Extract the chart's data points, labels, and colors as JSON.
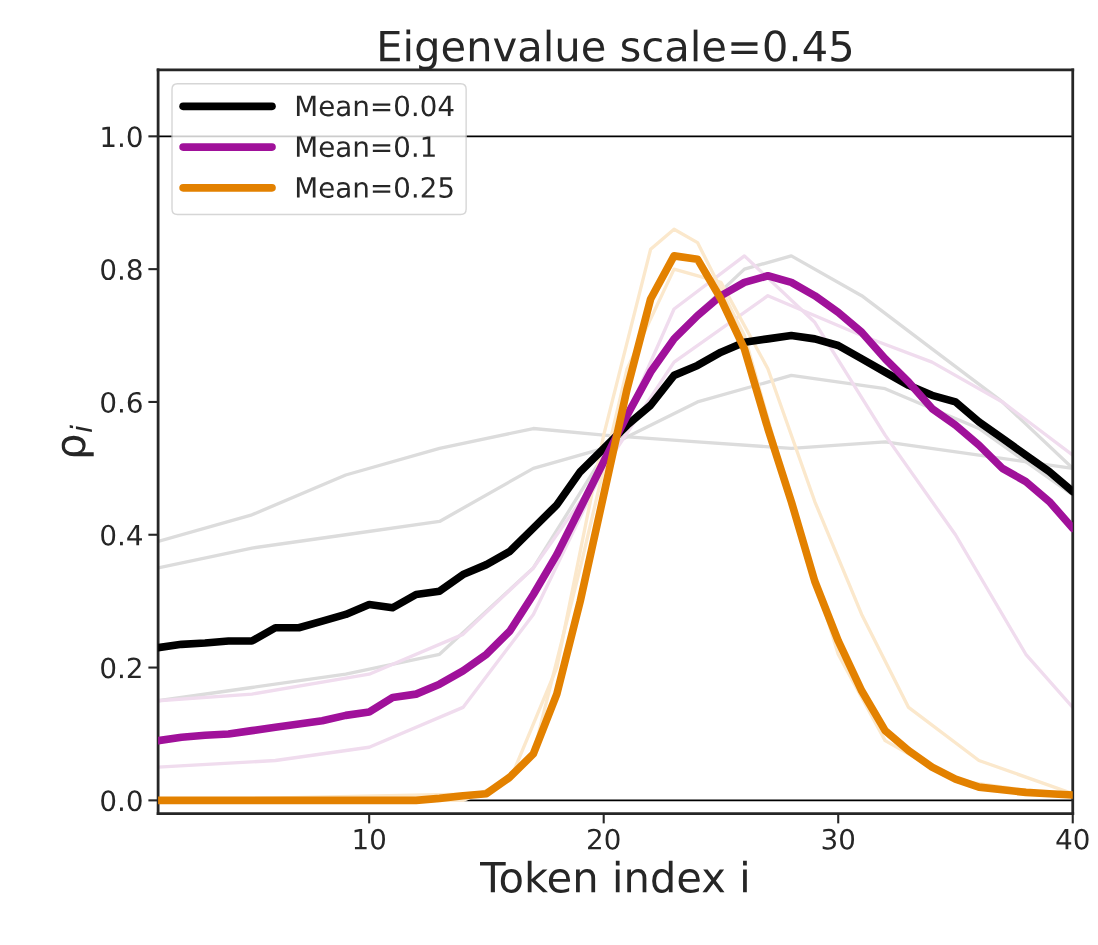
{
  "chart_data": {
    "type": "line",
    "title": "Eigenvalue scale=0.45",
    "xlabel": "Token index i",
    "ylabel": "ρ$_{i}$",
    "xlim": [
      1,
      40
    ],
    "ylim": [
      -0.02,
      1.1
    ],
    "xticks": [
      10,
      20,
      30,
      40
    ],
    "yticks": [
      {
        "value": 0,
        "label": "0.0"
      },
      {
        "value": 0.2,
        "label": "0.2"
      },
      {
        "value": 0.4,
        "label": "0.4"
      },
      {
        "value": 0.6,
        "label": "0.6"
      },
      {
        "value": 0.8,
        "label": "0.8"
      },
      {
        "value": 1,
        "label": "1.0"
      }
    ],
    "x": [
      1,
      2,
      3,
      4,
      5,
      6,
      7,
      8,
      9,
      10,
      11,
      12,
      13,
      14,
      15,
      16,
      17,
      18,
      19,
      20,
      21,
      22,
      23,
      24,
      25,
      26,
      27,
      28,
      29,
      30,
      31,
      32,
      33,
      34,
      35,
      36,
      37,
      38,
      39,
      40
    ],
    "grid": false,
    "legend": "top left",
    "line_style": "solid",
    "ref_lines": [
      {
        "axis": "y",
        "value": 0,
        "color": "#000000"
      },
      {
        "axis": "y",
        "value": 1,
        "color": "#000000"
      }
    ],
    "series": [
      {
        "color": "#dcdcdc",
        "x": [
          1,
          5,
          9,
          13,
          17,
          20,
          24,
          28,
          32,
          36,
          40
        ],
        "values": [
          0.39,
          0.43,
          0.49,
          0.53,
          0.56,
          0.55,
          0.54,
          0.53,
          0.54,
          0.52,
          0.5
        ]
      },
      {
        "color": "#dcdcdc",
        "x": [
          1,
          5,
          9,
          13,
          17,
          20,
          23,
          26,
          28,
          31,
          34,
          37,
          40
        ],
        "values": [
          0.15,
          0.17,
          0.19,
          0.22,
          0.35,
          0.52,
          0.7,
          0.8,
          0.82,
          0.76,
          0.68,
          0.6,
          0.5
        ]
      },
      {
        "color": "#dcdcdc",
        "x": [
          1,
          5,
          9,
          13,
          17,
          20,
          24,
          28,
          32,
          36,
          40
        ],
        "values": [
          0.35,
          0.38,
          0.4,
          0.42,
          0.5,
          0.53,
          0.6,
          0.64,
          0.62,
          0.56,
          0.46
        ]
      },
      {
        "color": "#f0dcee",
        "x": [
          1,
          6,
          10,
          14,
          17,
          20,
          23,
          26,
          29,
          32,
          35,
          38,
          40
        ],
        "values": [
          0.05,
          0.06,
          0.08,
          0.14,
          0.28,
          0.5,
          0.74,
          0.82,
          0.72,
          0.55,
          0.4,
          0.22,
          0.14
        ]
      },
      {
        "color": "#f0dcee",
        "x": [
          1,
          5,
          10,
          14,
          17,
          20,
          23,
          27,
          31,
          34,
          37,
          40
        ],
        "values": [
          0.15,
          0.16,
          0.19,
          0.25,
          0.35,
          0.5,
          0.66,
          0.76,
          0.7,
          0.66,
          0.6,
          0.52
        ]
      },
      {
        "color": "#fbe8cc",
        "x": [
          1,
          14,
          16,
          18,
          20,
          22,
          23,
          24,
          26,
          28,
          30,
          32,
          35,
          40
        ],
        "values": [
          0.0,
          0.0,
          0.03,
          0.2,
          0.55,
          0.83,
          0.86,
          0.84,
          0.7,
          0.45,
          0.22,
          0.09,
          0.03,
          0.005
        ]
      },
      {
        "color": "#fbe8cc",
        "x": [
          1,
          15,
          17,
          19,
          21,
          23,
          25,
          27,
          29,
          31,
          33,
          36,
          40
        ],
        "values": [
          0.0,
          0.01,
          0.07,
          0.35,
          0.65,
          0.8,
          0.78,
          0.65,
          0.45,
          0.28,
          0.14,
          0.06,
          0.01
        ]
      },
      {
        "name": "Mean=0.04",
        "color": "#000000",
        "values": [
          0.23,
          0.235,
          0.237,
          0.24,
          0.24,
          0.26,
          0.26,
          0.27,
          0.28,
          0.295,
          0.29,
          0.31,
          0.315,
          0.34,
          0.355,
          0.375,
          0.41,
          0.445,
          0.495,
          0.53,
          0.565,
          0.595,
          0.64,
          0.655,
          0.675,
          0.69,
          0.695,
          0.7,
          0.695,
          0.685,
          0.665,
          0.645,
          0.625,
          0.61,
          0.6,
          0.57,
          0.545,
          0.52,
          0.495,
          0.465
        ]
      },
      {
        "name": "Mean=0.1",
        "color": "#a0119a",
        "values": [
          0.09,
          0.095,
          0.098,
          0.1,
          0.105,
          0.11,
          0.115,
          0.12,
          0.128,
          0.133,
          0.155,
          0.16,
          0.175,
          0.195,
          0.22,
          0.255,
          0.31,
          0.37,
          0.44,
          0.51,
          0.58,
          0.645,
          0.695,
          0.73,
          0.76,
          0.78,
          0.79,
          0.78,
          0.76,
          0.735,
          0.705,
          0.665,
          0.63,
          0.59,
          0.565,
          0.535,
          0.5,
          0.48,
          0.45,
          0.41
        ]
      },
      {
        "name": "Mean=0.25",
        "color": "#e38100",
        "values": [
          0.0,
          0.0,
          0.0,
          0.0,
          0.0,
          0.0,
          0.0,
          0.0,
          0.0,
          0.0,
          0.0,
          0.0,
          0.003,
          0.007,
          0.01,
          0.035,
          0.07,
          0.16,
          0.3,
          0.46,
          0.62,
          0.755,
          0.82,
          0.815,
          0.755,
          0.68,
          0.56,
          0.45,
          0.33,
          0.24,
          0.165,
          0.105,
          0.075,
          0.05,
          0.032,
          0.02,
          0.016,
          0.012,
          0.01,
          0.008
        ]
      }
    ]
  }
}
